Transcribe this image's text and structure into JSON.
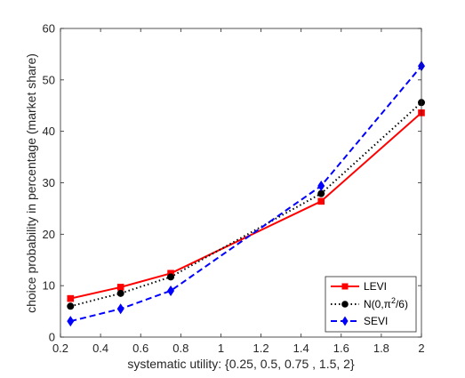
{
  "chart_data": {
    "type": "line",
    "title": "",
    "xlabel": "systematic utility: {0.25, 0.5, 0.75 , 1.5,  2}",
    "ylabel": "choice probability in percentage (market share)",
    "xlim": [
      0.2,
      2
    ],
    "ylim": [
      0,
      60
    ],
    "xticks": [
      "0.2",
      "0.4",
      "0.6",
      "0.8",
      "1",
      "1.2",
      "1.4",
      "1.6",
      "1.8",
      "2"
    ],
    "yticks": [
      "0",
      "10",
      "20",
      "30",
      "40",
      "50",
      "60"
    ],
    "grid": false,
    "legend_position": "bottom-right",
    "x": [
      0.25,
      0.5,
      0.75,
      1.5,
      2
    ],
    "series": [
      {
        "name": "LEVI",
        "values": [
          7.5,
          9.7,
          12.4,
          26.4,
          43.6
        ],
        "color": "#ff0000",
        "line_style": "solid",
        "marker": "square"
      },
      {
        "name": "N(0,π²/6)",
        "legend_label_base": "N(0,π",
        "legend_label_sup": "2",
        "legend_label_tail": "/6)",
        "values": [
          6.0,
          8.5,
          11.7,
          27.9,
          45.6
        ],
        "color": "#000000",
        "line_style": "dotted",
        "marker": "circle"
      },
      {
        "name": "SEVI",
        "values": [
          3.1,
          5.5,
          9.0,
          29.4,
          52.7
        ],
        "color": "#0000ff",
        "line_style": "dashed",
        "marker": "diamond"
      }
    ]
  }
}
